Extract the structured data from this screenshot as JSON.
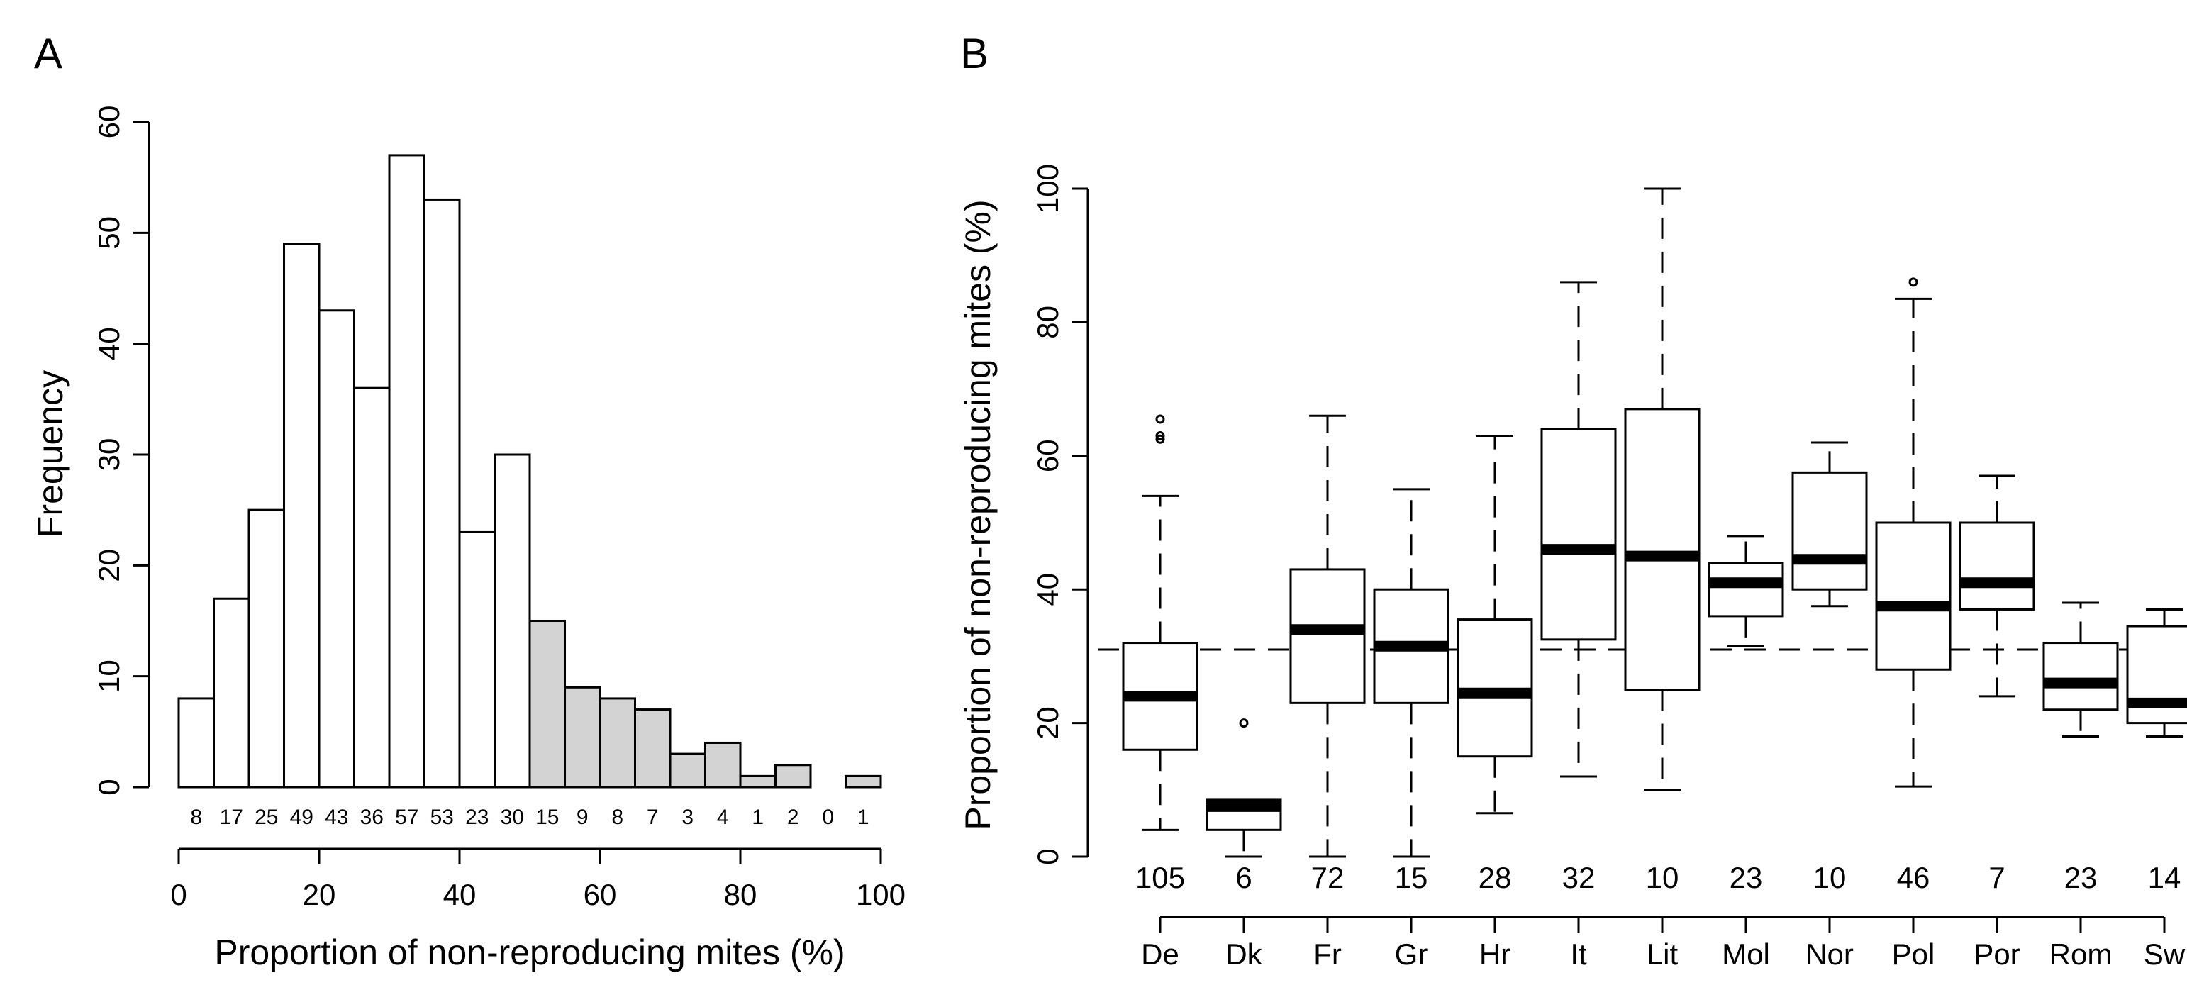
{
  "panels": {
    "a_label": "A",
    "b_label": "B"
  },
  "colors": {
    "white_bar": "#ffffff",
    "grey_bar": "#d3d3d3",
    "stroke": "#000000"
  },
  "chart_data": [
    {
      "type": "bar",
      "panel": "A",
      "title": "",
      "xlabel": "Proportion of non-reproducing mites (%)",
      "ylabel": "Frequency",
      "bin_width": 5,
      "bin_starts": [
        0,
        5,
        10,
        15,
        20,
        25,
        30,
        35,
        40,
        45,
        50,
        55,
        60,
        65,
        70,
        75,
        80,
        85,
        90,
        95
      ],
      "values": [
        8,
        17,
        25,
        49,
        43,
        36,
        57,
        53,
        23,
        30,
        15,
        9,
        8,
        7,
        3,
        4,
        1,
        2,
        0,
        1
      ],
      "count_labels": [
        "8",
        "17",
        "25",
        "49",
        "43",
        "36",
        "57",
        "53",
        "23",
        "30",
        "15",
        "9",
        "8",
        "7",
        "3",
        "4",
        "1",
        "2",
        "0",
        "1"
      ],
      "shaded_from_x": 50,
      "xlim": [
        0,
        100
      ],
      "ylim": [
        0,
        60
      ],
      "x_ticks": [
        "0",
        "20",
        "40",
        "60",
        "80",
        "100"
      ],
      "y_ticks": [
        "0",
        "10",
        "20",
        "30",
        "40",
        "50",
        "60"
      ],
      "grid": false
    },
    {
      "type": "boxplot",
      "panel": "B",
      "title": "",
      "xlabel": "",
      "ylabel": "Proportion of non-reproducing mites (%)",
      "ylim": [
        0,
        100
      ],
      "y_ticks": [
        "0",
        "20",
        "40",
        "60",
        "80",
        "100"
      ],
      "reference_line": 31,
      "grid": false,
      "groups": [
        {
          "label": "De",
          "n": "105",
          "low": 4,
          "q1": 16,
          "median": 24,
          "q3": 32,
          "high": 54,
          "outliers": [
            62.5,
            63,
            65.5
          ]
        },
        {
          "label": "Dk",
          "n": "6",
          "low": 0,
          "q1": 4,
          "median": 7.5,
          "q3": 8.5,
          "high": 8.5,
          "outliers": [
            20
          ]
        },
        {
          "label": "Fr",
          "n": "72",
          "low": 0,
          "q1": 23,
          "median": 34,
          "q3": 43,
          "high": 66,
          "outliers": []
        },
        {
          "label": "Gr",
          "n": "15",
          "low": 0,
          "q1": 23,
          "median": 31.5,
          "q3": 40,
          "high": 55,
          "outliers": []
        },
        {
          "label": "Hr",
          "n": "28",
          "low": 6.5,
          "q1": 15,
          "median": 24.5,
          "q3": 35.5,
          "high": 63,
          "outliers": []
        },
        {
          "label": "It",
          "n": "32",
          "low": 12,
          "q1": 32.5,
          "median": 46,
          "q3": 64,
          "high": 86,
          "outliers": []
        },
        {
          "label": "Lit",
          "n": "10",
          "low": 10,
          "q1": 25,
          "median": 45,
          "q3": 67,
          "high": 100,
          "outliers": []
        },
        {
          "label": "Mol",
          "n": "23",
          "low": 31.5,
          "q1": 36,
          "median": 41,
          "q3": 44,
          "high": 48,
          "outliers": []
        },
        {
          "label": "Nor",
          "n": "10",
          "low": 37.5,
          "q1": 40,
          "median": 44.5,
          "q3": 57.5,
          "high": 62,
          "outliers": []
        },
        {
          "label": "Pol",
          "n": "46",
          "low": 10.5,
          "q1": 28,
          "median": 37.5,
          "q3": 50,
          "high": 83.5,
          "outliers": [
            86
          ]
        },
        {
          "label": "Por",
          "n": "7",
          "low": 24,
          "q1": 37,
          "median": 41,
          "q3": 50,
          "high": 57,
          "outliers": []
        },
        {
          "label": "Rom",
          "n": "23",
          "low": 18,
          "q1": 22,
          "median": 26,
          "q3": 32,
          "high": 38,
          "outliers": []
        },
        {
          "label": "Sw",
          "n": "14",
          "low": 18,
          "q1": 20,
          "median": 23,
          "q3": 34.5,
          "high": 37,
          "outliers": []
        }
      ]
    }
  ]
}
